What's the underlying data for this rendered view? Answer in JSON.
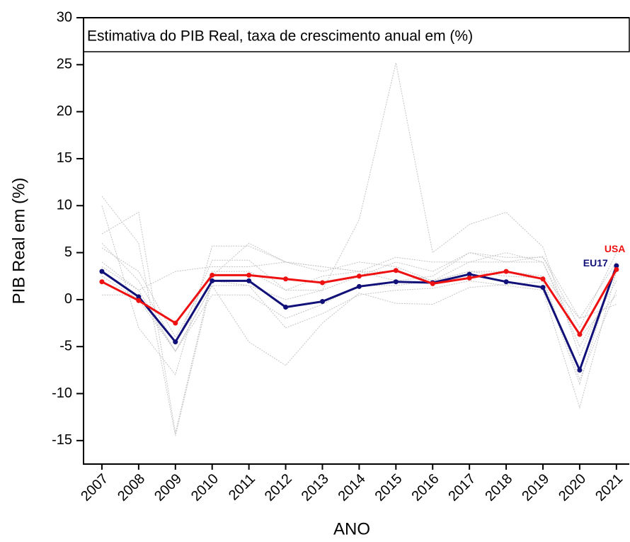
{
  "chart_data": {
    "type": "line",
    "title": "Estimativa do PIB Real, taxa de crescimento anual em (%)",
    "x_label": "ANO",
    "y_label": "PIB Real em (%)",
    "x": [
      2007,
      2008,
      2009,
      2010,
      2011,
      2012,
      2013,
      2014,
      2015,
      2016,
      2017,
      2018,
      2019,
      2020,
      2021
    ],
    "xlim": [
      2006.5,
      2021.35
    ],
    "xticks": [
      2007,
      2008,
      2009,
      2010,
      2011,
      2012,
      2013,
      2014,
      2015,
      2016,
      2017,
      2018,
      2019,
      2020,
      2021
    ],
    "ylim": [
      -17.5,
      30
    ],
    "yticks": [
      -15,
      -10,
      -5,
      0,
      5,
      10,
      15,
      20,
      25,
      30
    ],
    "grid": false,
    "series": [
      {
        "color": "#c4c4c4",
        "values": [
          11,
          6,
          -14.5,
          2,
          1.5,
          0,
          1,
          8.5,
          25.2,
          5,
          8,
          9.3,
          5.6,
          -6,
          3
        ]
      },
      {
        "color": "#c4c4c4",
        "values": [
          7,
          9.3,
          -14.2,
          2.5,
          6,
          4,
          3.5,
          3,
          2,
          2.5,
          5,
          4.5,
          4.5,
          -3,
          5
        ]
      },
      {
        "color": "#c4c4c4",
        "values": [
          10,
          -3,
          -8,
          5.7,
          5.7,
          4,
          3,
          4,
          3.5,
          2,
          4,
          4,
          4.6,
          -2,
          4
        ]
      },
      {
        "color": "#c4c4c4",
        "values": [
          4,
          1,
          -5.5,
          1.5,
          -4.5,
          -7,
          -2.5,
          0.7,
          -0.4,
          -0.5,
          1.3,
          1.6,
          1.9,
          -9,
          4
        ]
      },
      {
        "color": "#c4c4c4",
        "values": [
          6,
          2,
          -4.8,
          4.2,
          4.2,
          1,
          1,
          2.5,
          4,
          3,
          5,
          4,
          4,
          -5,
          2
        ]
      },
      {
        "color": "#c4c4c4",
        "values": [
          2.5,
          0,
          -5.5,
          1.5,
          1.5,
          -3,
          -1.5,
          0.5,
          1,
          1.2,
          2,
          1.5,
          1,
          -11.5,
          3
        ]
      },
      {
        "color": "#c4c4c4",
        "values": [
          0.5,
          0.5,
          -5.5,
          0.5,
          0.5,
          -2,
          -0.5,
          1.5,
          1.5,
          2,
          3,
          2.5,
          2.3,
          -8.5,
          1
        ]
      },
      {
        "color": "#c4c4c4",
        "values": [
          5.5,
          3,
          -4,
          3,
          3,
          1,
          2.5,
          3,
          4.5,
          4,
          4,
          5,
          4,
          -4,
          0.5
        ]
      },
      {
        "color": "#c4c4c4",
        "values": [
          3.5,
          1,
          3,
          3.5,
          3.5,
          4,
          3.5,
          3,
          3,
          2,
          3,
          3,
          2.5,
          -2,
          -0.5
        ]
      },
      {
        "name": "EU17",
        "color": "#101078",
        "values": [
          3.0,
          0.3,
          -4.5,
          2.0,
          2.0,
          -0.8,
          -0.2,
          1.4,
          1.9,
          1.8,
          2.7,
          1.9,
          1.3,
          -7.5,
          3.6
        ]
      },
      {
        "name": "USA",
        "color": "#ee1111",
        "values": [
          1.9,
          -0.1,
          -2.5,
          2.6,
          2.6,
          2.2,
          1.8,
          2.5,
          3.1,
          1.7,
          2.3,
          3.0,
          2.2,
          -3.7,
          3.2
        ]
      }
    ]
  }
}
